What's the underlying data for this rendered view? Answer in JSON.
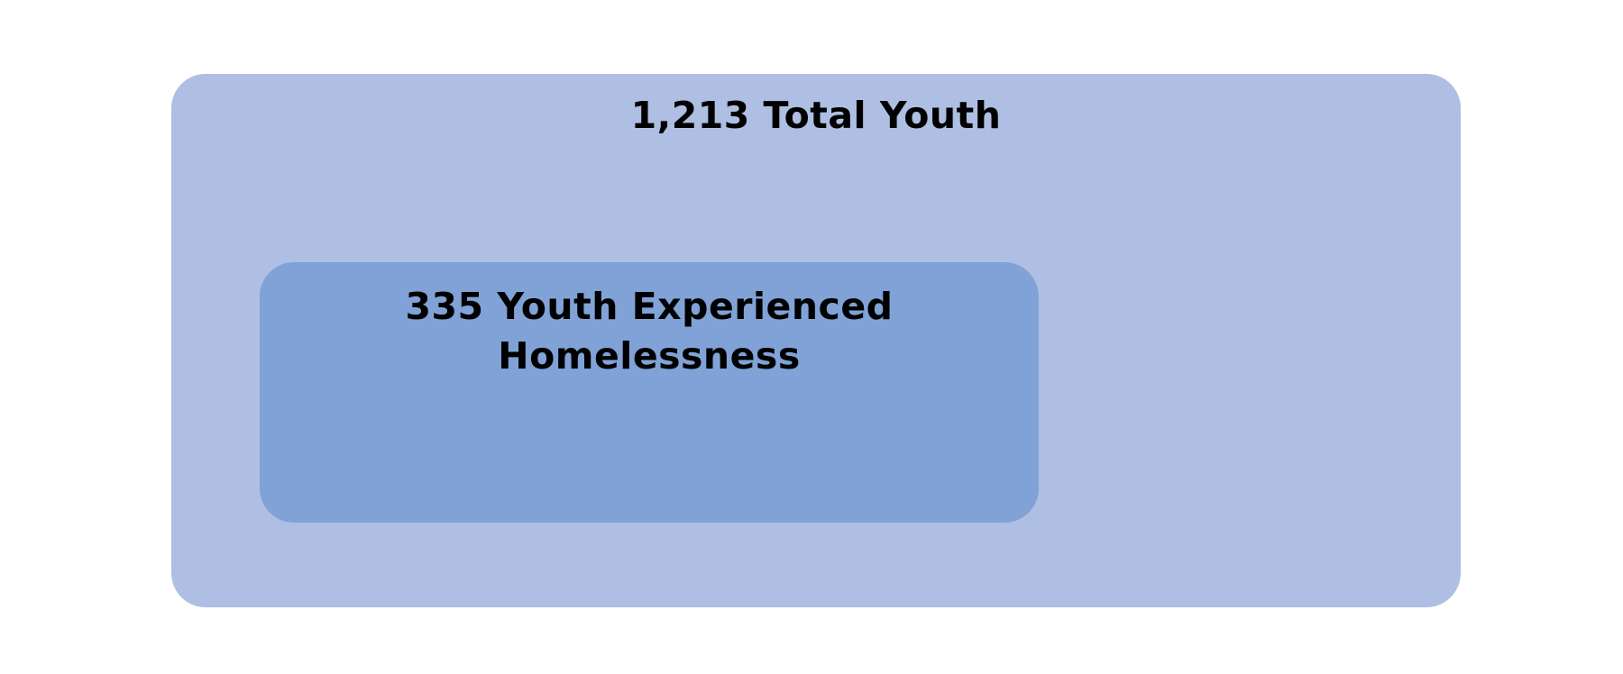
{
  "outer": {
    "label": "1,213 Total Youth",
    "color": "#aebfe3"
  },
  "inner": {
    "label_line1": "335 Youth Experienced",
    "label_line2": "Homelessness",
    "color": "#80a2d6"
  }
}
